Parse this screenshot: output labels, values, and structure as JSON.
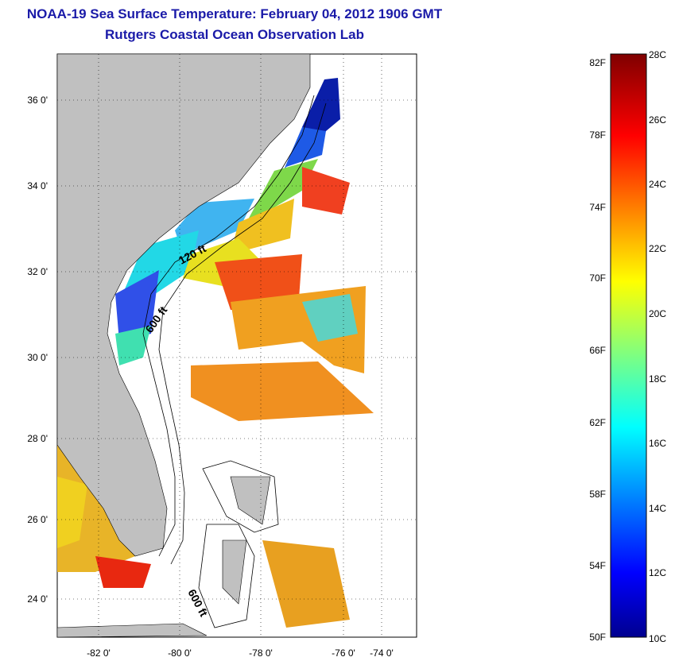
{
  "title": {
    "line1": "NOAA-19 Sea Surface Temperature:  February 04, 2012 1906 GMT",
    "line2": "Rutgers Coastal Ocean Observation Lab"
  },
  "map": {
    "lat_ticks": [
      "36 0'",
      "34 0'",
      "32 0'",
      "30 0'",
      "28 0'",
      "26 0'",
      "24 0'"
    ],
    "lon_ticks": [
      "-82 0'",
      "-80 0'",
      "-78 0'",
      "-76 0'",
      "-74 0'"
    ],
    "contour_labels": [
      "120 ft",
      "600 ft",
      "600 ft"
    ],
    "land_color": "#c0c0c0"
  },
  "colorbar": {
    "fahrenheit_labels": [
      "82F",
      "78F",
      "74F",
      "70F",
      "66F",
      "62F",
      "58F",
      "54F",
      "50F"
    ],
    "celsius_labels": [
      "28C",
      "26C",
      "24C",
      "22C",
      "20C",
      "18C",
      "16C",
      "14C",
      "12C",
      "10C"
    ],
    "colormap": "jet",
    "range_c": [
      10,
      28
    ]
  }
}
